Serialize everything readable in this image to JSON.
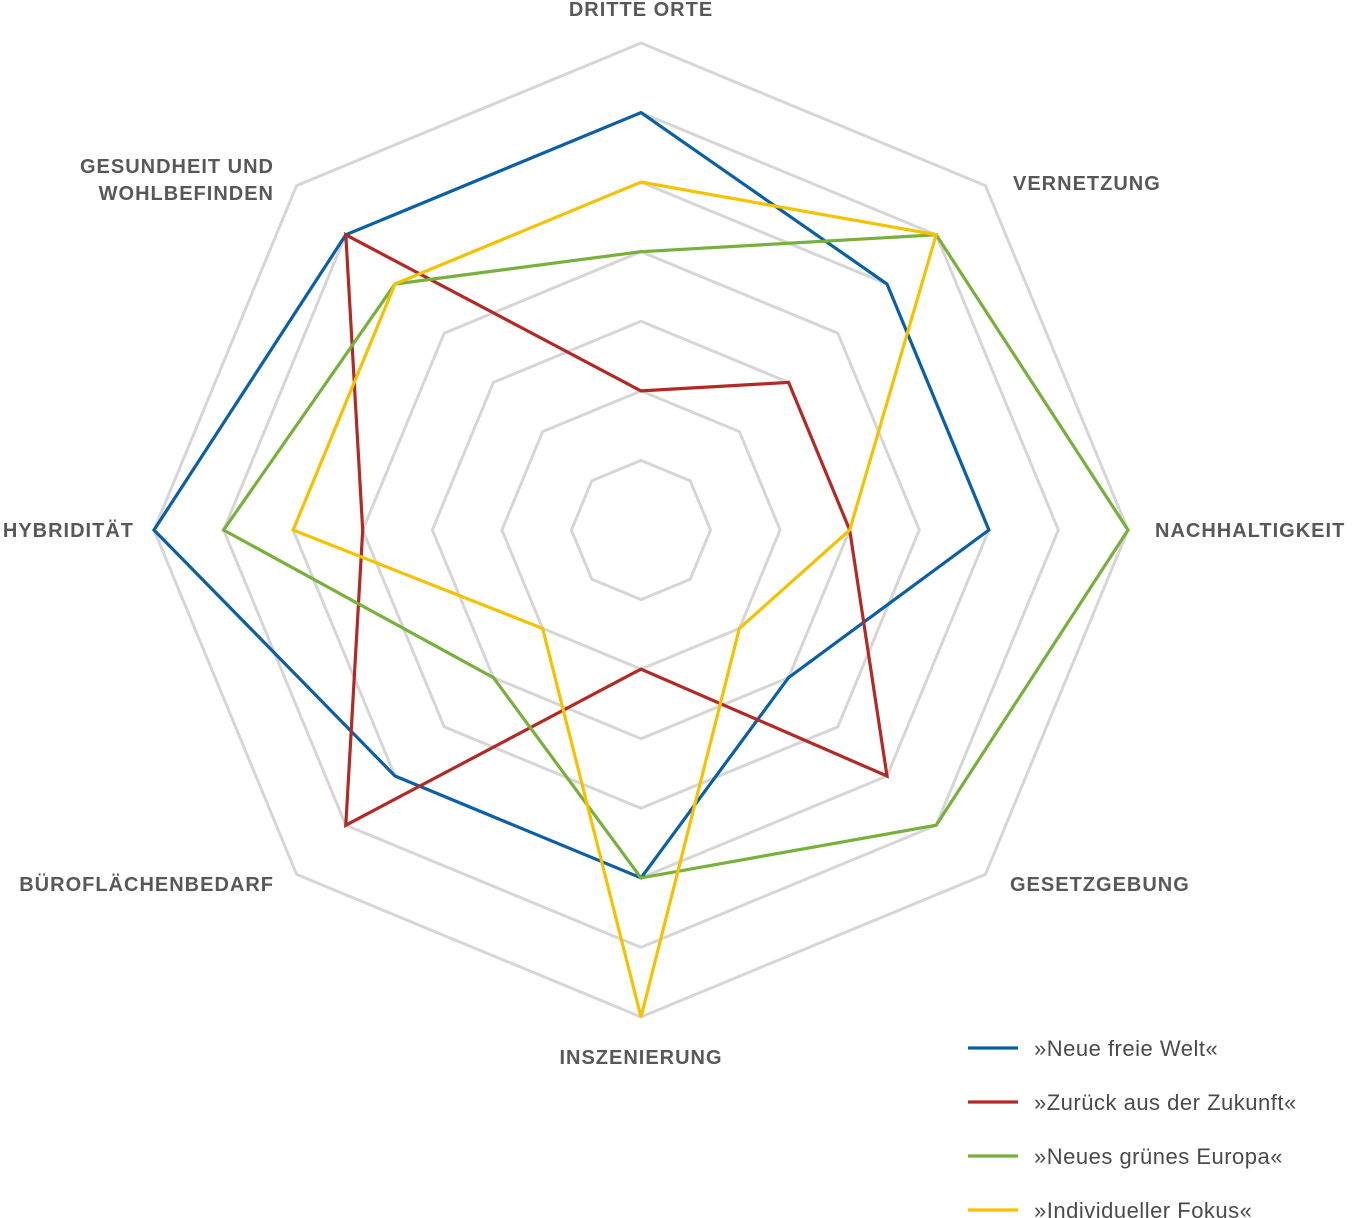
{
  "chart_data": {
    "type": "radar",
    "axes": [
      "DRITTE ORTE",
      "VERNETZUNG",
      "NACHHALTIGKEIT",
      "GESETZGEBUNG",
      "INSZENIERUNG",
      "BÜROFLÄCHENBEDARF",
      "HYBRIDITÄT",
      "GESUNDHEIT UND WOHLBEFINDEN"
    ],
    "axis_label_lines": [
      [
        "DRITTE ORTE"
      ],
      [
        "VERNETZUNG"
      ],
      [
        "NACHHALTIGKEIT"
      ],
      [
        "GESETZGEBUNG"
      ],
      [
        "INSZENIERUNG"
      ],
      [
        "BÜROFLÄCHENBEDARF"
      ],
      [
        "HYBRIDITÄT"
      ],
      [
        "GESUNDHEIT UND",
        "WOHLBEFINDEN"
      ]
    ],
    "rings": 7,
    "ring_color": "#d6d6d6",
    "scale_max": 7,
    "grid": true,
    "legend_position": "bottom-right",
    "series": [
      {
        "name": "»Neue freie Welt«",
        "color": "#0b5fa5",
        "values": [
          6,
          5,
          5,
          3,
          5,
          5,
          7,
          6
        ]
      },
      {
        "name": "»Zurück aus der Zukunft«",
        "color": "#b22a25",
        "values": [
          2,
          3,
          3,
          5,
          2,
          6,
          4,
          6
        ]
      },
      {
        "name": "»Neues grünes Europa«",
        "color": "#77b13b",
        "values": [
          4,
          6,
          7,
          6,
          5,
          3,
          6,
          5
        ]
      },
      {
        "name": "»Individueller Fokus«",
        "color": "#f5c200",
        "values": [
          5,
          6,
          3,
          2,
          7,
          2,
          5,
          5
        ]
      }
    ]
  }
}
